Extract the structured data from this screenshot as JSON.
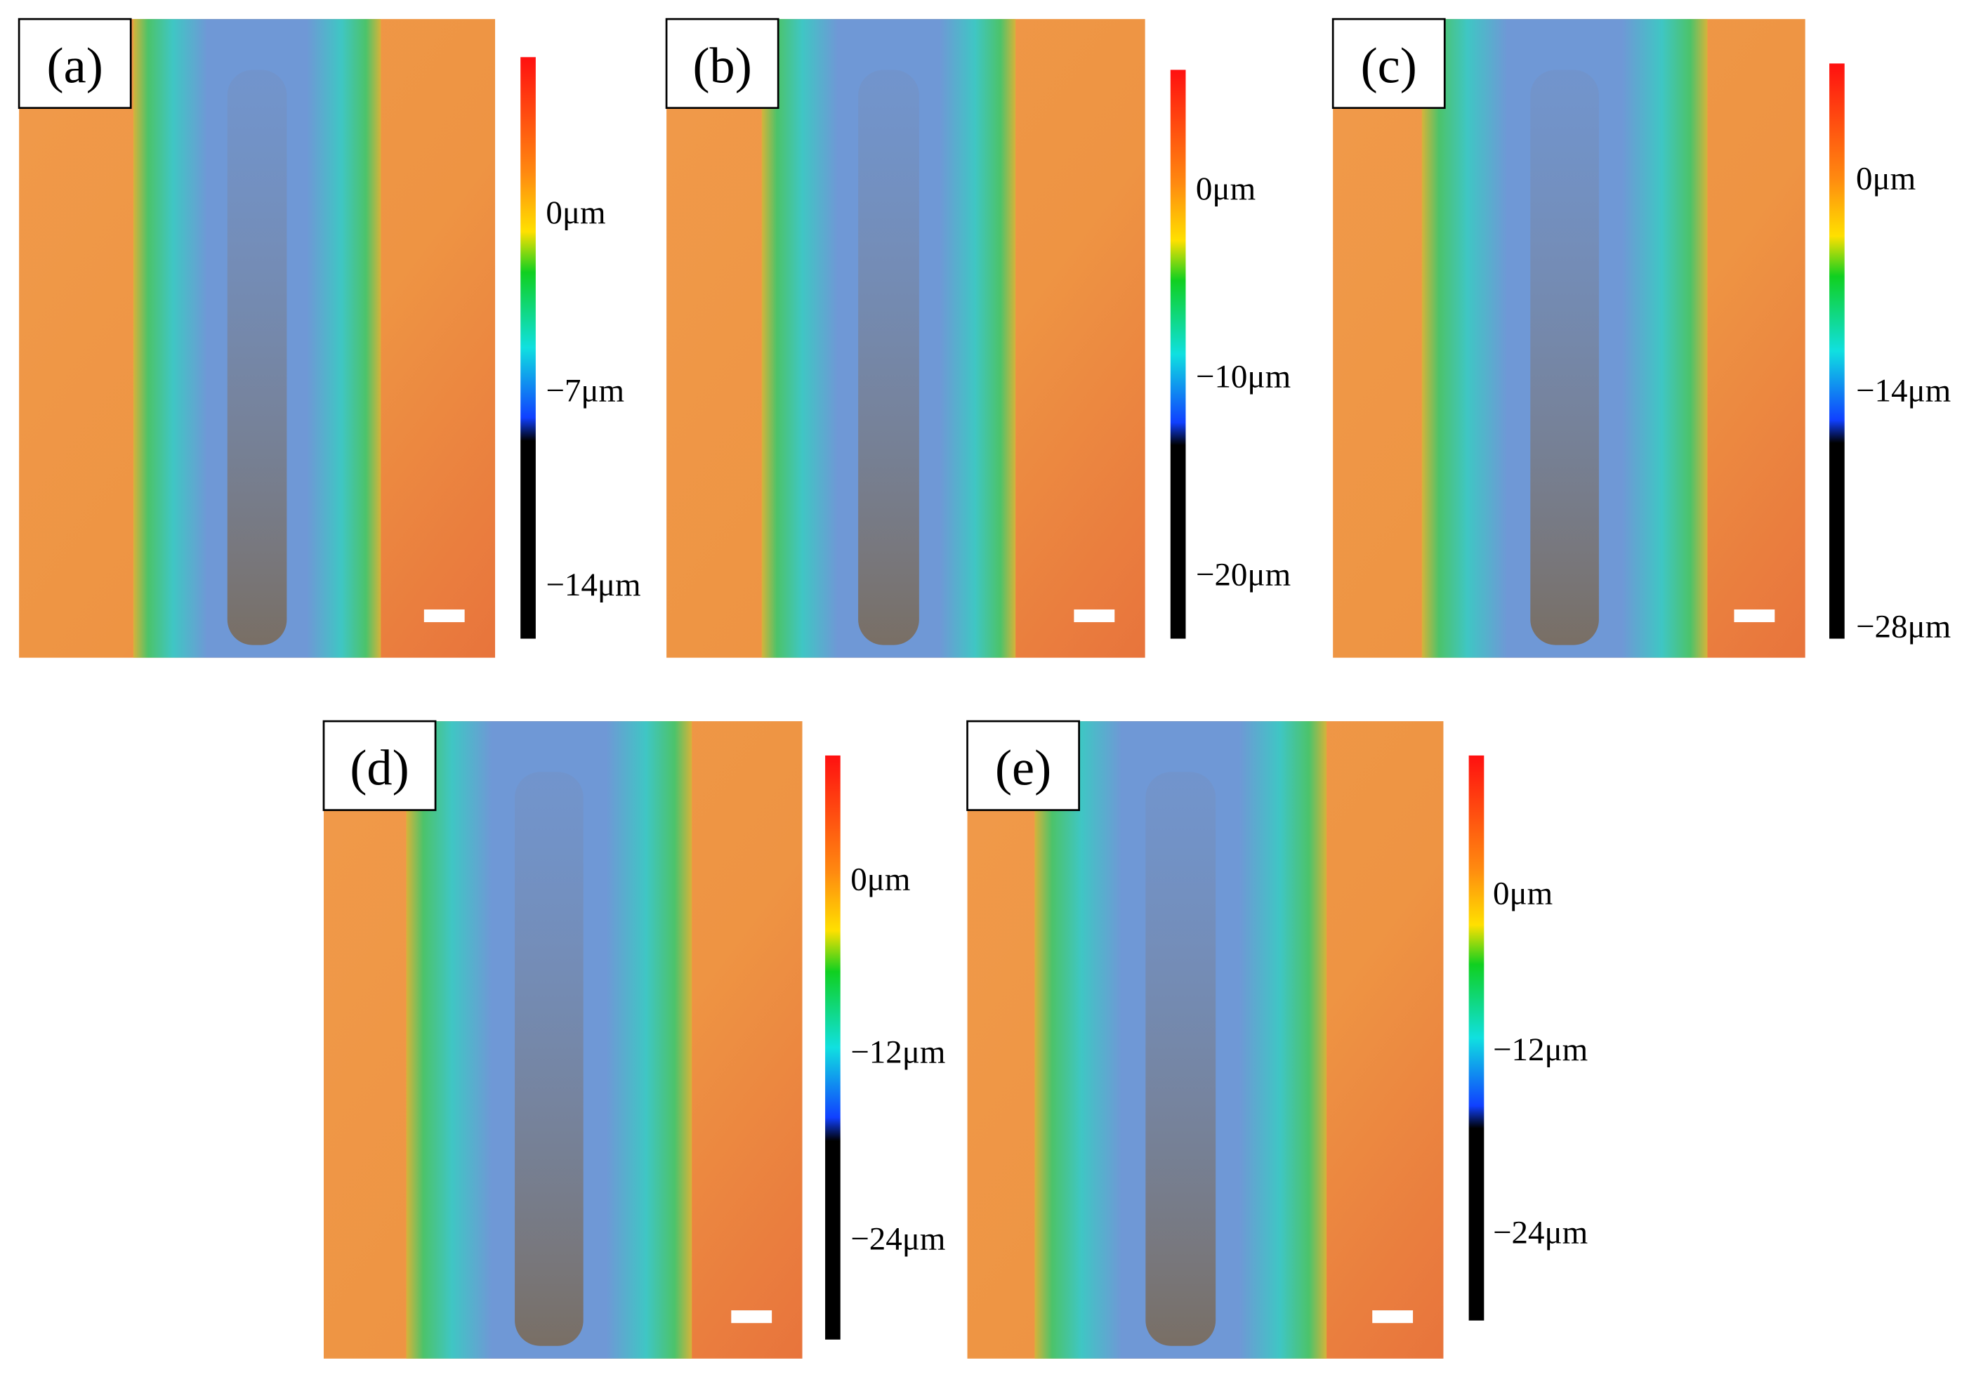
{
  "panels": [
    {
      "label": "(a)",
      "colorbar_ticks": [
        "0μm",
        "−7μm",
        "−14μm"
      ]
    },
    {
      "label": "(b)",
      "colorbar_ticks": [
        "0μm",
        "−10μm",
        "−20μm"
      ]
    },
    {
      "label": "(c)",
      "colorbar_ticks": [
        "0μm",
        "−14μm",
        "−28μm"
      ]
    },
    {
      "label": "(d)",
      "colorbar_ticks": [
        "0μm",
        "−12μm",
        "−24μm"
      ]
    },
    {
      "label": "(e)",
      "colorbar_ticks": [
        "0μm",
        "−12μm",
        "−24μm"
      ]
    }
  ]
}
